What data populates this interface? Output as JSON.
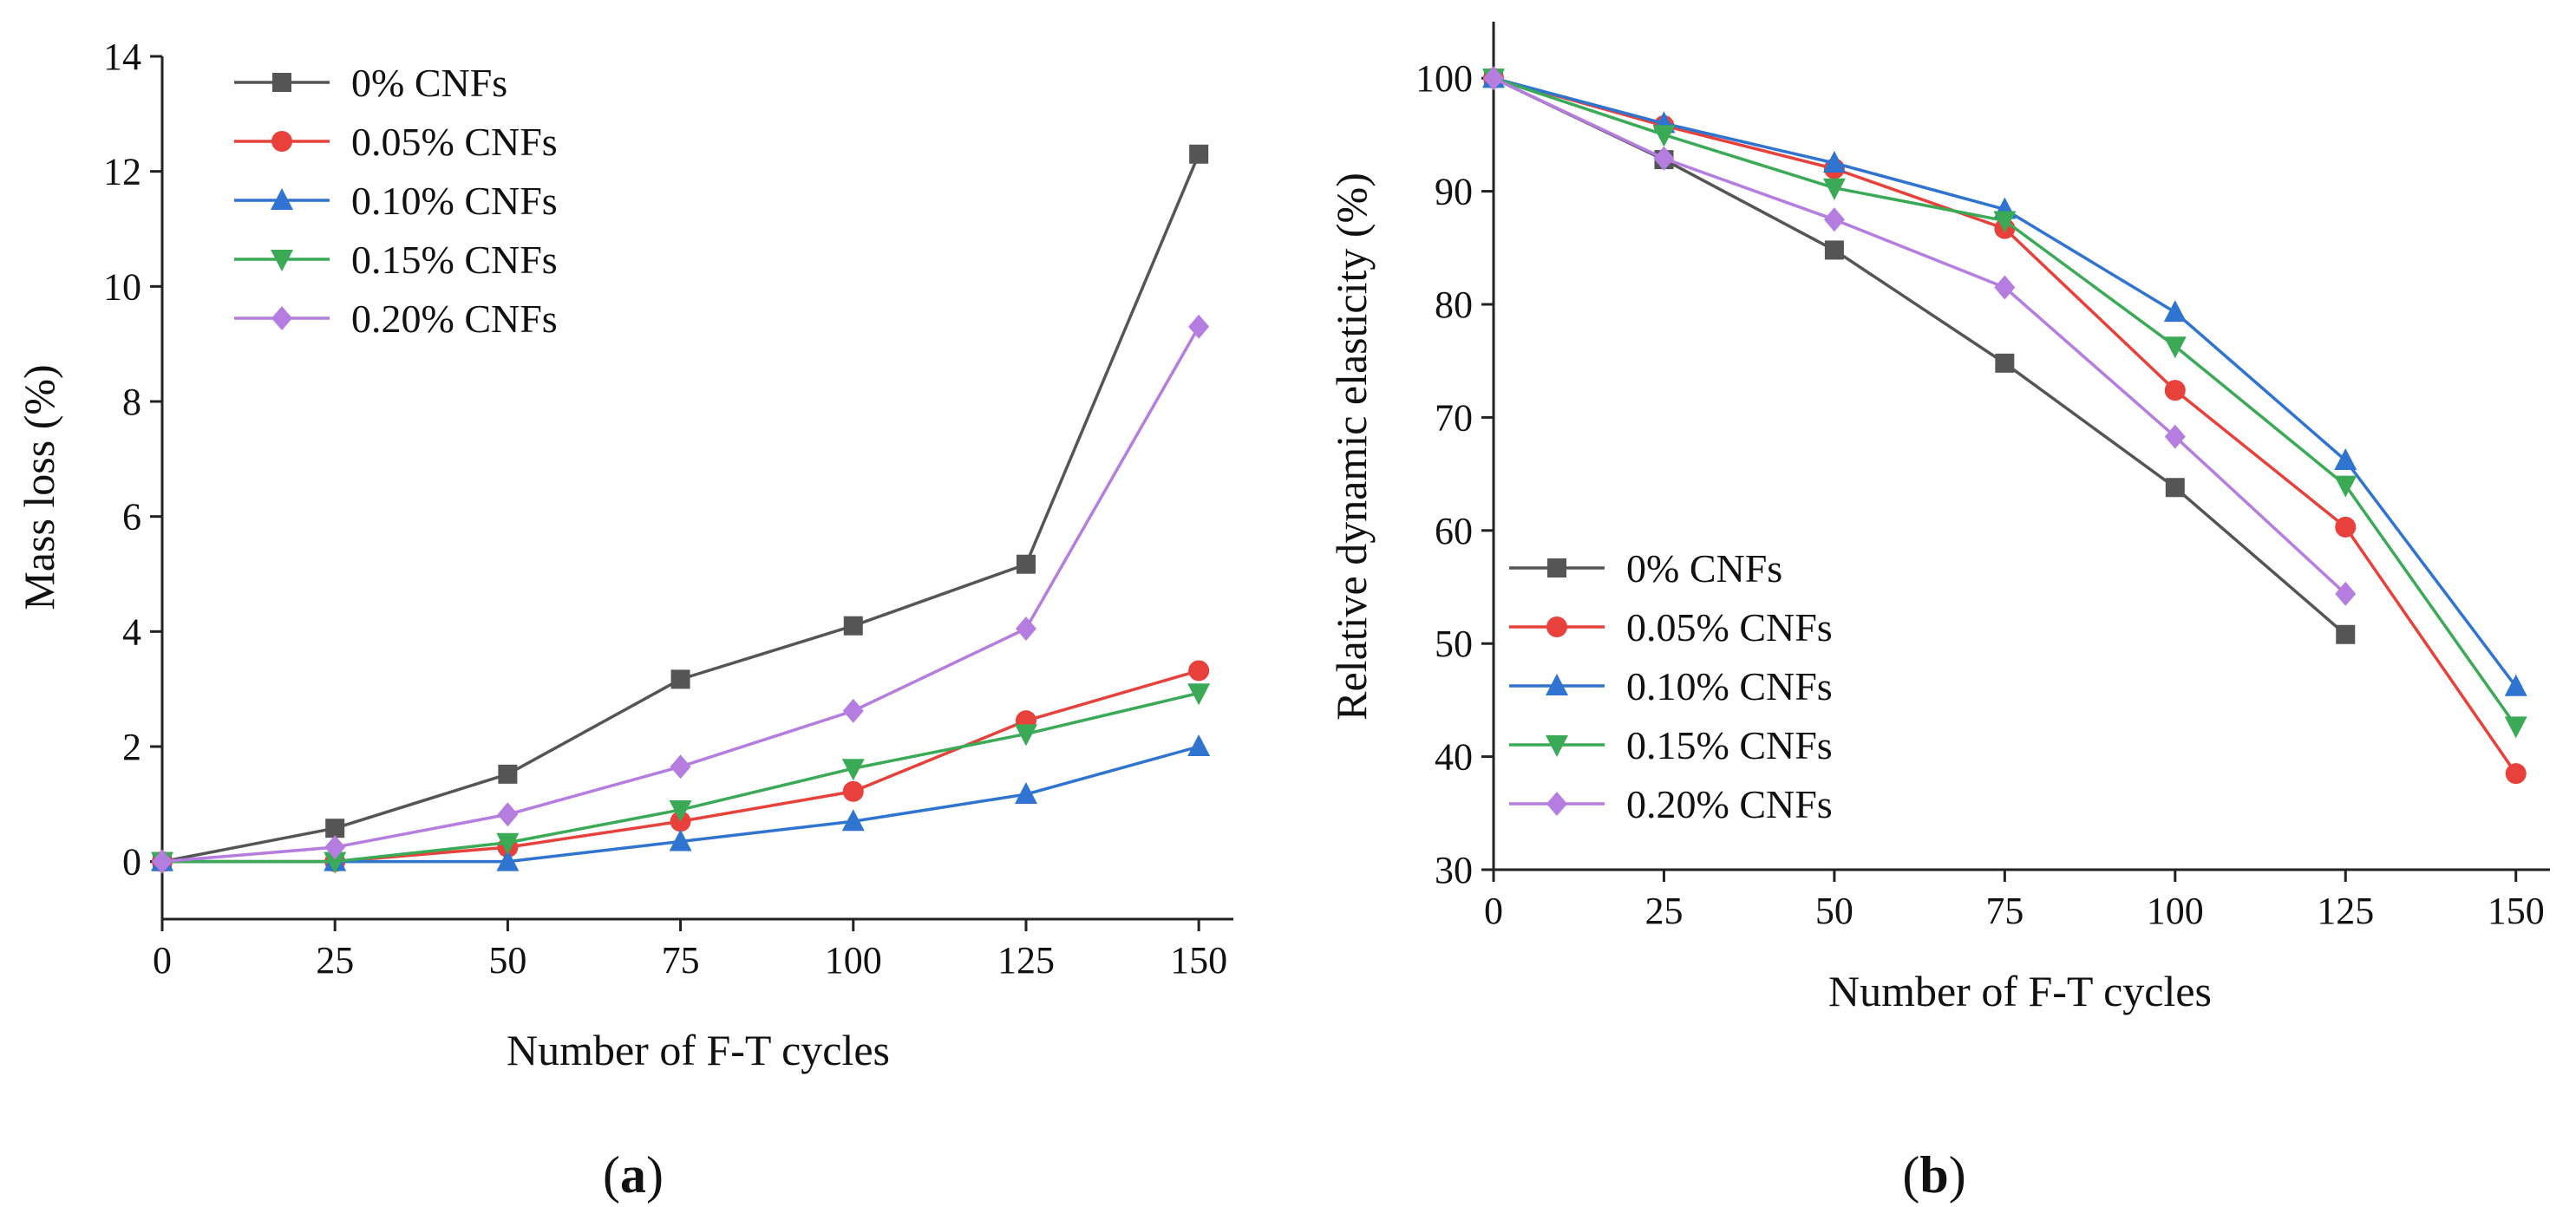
{
  "chart_data": [
    {
      "type": "line",
      "panel_label": "a",
      "title": "",
      "xlabel": "Number of F-T cycles",
      "ylabel": "Mass loss (%)",
      "x": [
        0,
        25,
        50,
        75,
        100,
        125,
        150
      ],
      "xlim": [
        0,
        155
      ],
      "ylim": [
        -1,
        14
      ],
      "xticks": [
        0,
        25,
        50,
        75,
        100,
        125,
        150
      ],
      "yticks": [
        0,
        2,
        4,
        6,
        8,
        10,
        12,
        14
      ],
      "legend_position": "top-left",
      "grid": false,
      "series": [
        {
          "name": "0% CNFs",
          "color": "#555555",
          "marker": "square",
          "values": [
            0,
            0.58,
            1.52,
            3.17,
            4.1,
            5.17,
            12.3
          ]
        },
        {
          "name": "0.05% CNFs",
          "color": "#e8403a",
          "marker": "circle",
          "values": [
            0,
            0.0,
            0.25,
            0.7,
            1.22,
            2.45,
            3.32
          ]
        },
        {
          "name": "0.10% CNFs",
          "color": "#2f74d0",
          "marker": "triangle-up",
          "values": [
            0,
            0.0,
            0.0,
            0.35,
            0.7,
            1.17,
            2.0
          ]
        },
        {
          "name": "0.15% CNFs",
          "color": "#3aaa56",
          "marker": "triangle-down",
          "values": [
            0,
            0.0,
            0.33,
            0.9,
            1.62,
            2.22,
            2.93
          ]
        },
        {
          "name": "0.20% CNFs",
          "color": "#b57de0",
          "marker": "diamond",
          "values": [
            0,
            0.25,
            0.82,
            1.65,
            2.62,
            4.05,
            9.3
          ]
        }
      ]
    },
    {
      "type": "line",
      "panel_label": "b",
      "title": "",
      "xlabel": "Number of F-T cycles",
      "ylabel": "Relative dynamic elasticity (%)",
      "xlim": [
        0,
        155
      ],
      "ylim": [
        30,
        105
      ],
      "xticks": [
        0,
        25,
        50,
        75,
        100,
        125,
        150
      ],
      "yticks": [
        30,
        40,
        50,
        60,
        70,
        80,
        90,
        100
      ],
      "legend_position": "bottom-left",
      "grid": false,
      "series": [
        {
          "name": "0% CNFs",
          "color": "#555555",
          "marker": "square",
          "x": [
            0,
            25,
            50,
            75,
            100,
            125
          ],
          "values": [
            100,
            92.8,
            84.8,
            74.8,
            63.8,
            50.8
          ]
        },
        {
          "name": "0.05% CNFs",
          "color": "#e8403a",
          "marker": "circle",
          "x": [
            0,
            25,
            50,
            75,
            100,
            125,
            150
          ],
          "values": [
            100,
            95.8,
            92.0,
            86.7,
            72.4,
            60.3,
            38.5
          ]
        },
        {
          "name": "0.10% CNFs",
          "color": "#2f74d0",
          "marker": "triangle-up",
          "x": [
            0,
            25,
            50,
            75,
            100,
            125,
            150
          ],
          "values": [
            100,
            96.0,
            92.5,
            88.4,
            79.3,
            66.2,
            46.2
          ]
        },
        {
          "name": "0.15% CNFs",
          "color": "#3aaa56",
          "marker": "triangle-down",
          "x": [
            0,
            25,
            50,
            75,
            100,
            125,
            150
          ],
          "values": [
            100,
            95.0,
            90.3,
            87.4,
            76.3,
            64.0,
            42.7
          ]
        },
        {
          "name": "0.20% CNFs",
          "color": "#b57de0",
          "marker": "diamond",
          "x": [
            0,
            25,
            50,
            75,
            100,
            125
          ],
          "values": [
            100,
            92.9,
            87.5,
            81.5,
            68.3,
            54.4
          ]
        }
      ]
    }
  ]
}
